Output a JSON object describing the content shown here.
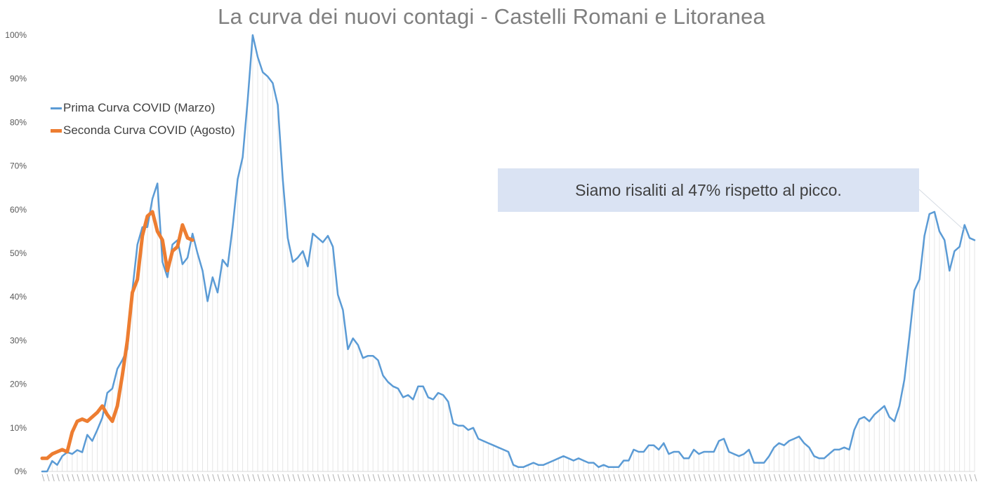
{
  "chart_data": {
    "type": "line",
    "title": "La curva dei nuovi contagi - Castelli Romani e Litoranea",
    "xlabel": "",
    "ylabel": "",
    "ylim": [
      0,
      100
    ],
    "yticks": [
      "0%",
      "10%",
      "20%",
      "30%",
      "40%",
      "50%",
      "60%",
      "70%",
      "80%",
      "90%",
      "100%"
    ],
    "grid": "vertical gridlines at each day",
    "legend_position": "top-left",
    "annotation": "Siamo risaliti al 47% rispetto al picco.",
    "series": [
      {
        "name": "Prima Curva COVID (Marzo)",
        "color": "#5b9bd5",
        "values": [
          0,
          0,
          2.4,
          1.5,
          3.5,
          4.4,
          4.0,
          4.9,
          4.4,
          8.4,
          7.0,
          9.5,
          12.3,
          18,
          19,
          23.5,
          25.5,
          28,
          41.5,
          52,
          56,
          56,
          62.5,
          66,
          48,
          44.5,
          52,
          53,
          47.5,
          49,
          54.5,
          50,
          46,
          39,
          44.5,
          41,
          48.5,
          47,
          56,
          67,
          72,
          85,
          100,
          95,
          91.5,
          90.5,
          89,
          84,
          67,
          53.5,
          48,
          49,
          50.5,
          47,
          54.5,
          53.5,
          52.5,
          54,
          51.5,
          40.5,
          37,
          28,
          30.5,
          29,
          26,
          26.5,
          26.5,
          25.5,
          22,
          20.5,
          19.5,
          19,
          17,
          17.5,
          16.5,
          19.5,
          19.5,
          17,
          16.5,
          18,
          17.5,
          16,
          11,
          10.5,
          10.5,
          9.5,
          10,
          7.5,
          7,
          6.5,
          6,
          5.5,
          5,
          4.5,
          1.5,
          1,
          1,
          1.5,
          2,
          1.5,
          1.5,
          2,
          2.5,
          3,
          3.5,
          3,
          2.5,
          3,
          2.5,
          2,
          2,
          1,
          1.5,
          1,
          1,
          1,
          2.5,
          2.5,
          5,
          4.5,
          4.5,
          6,
          6,
          5,
          6.5,
          4,
          4.5,
          4.5,
          3,
          3,
          5,
          4,
          4.5,
          4.5,
          4.5,
          7,
          7.5,
          4.5,
          4,
          3.5,
          4,
          5,
          2,
          2,
          2,
          3.5,
          5.5,
          6.5,
          6,
          7,
          7.5,
          8,
          6.5,
          5.5,
          3.5,
          3,
          3,
          4,
          5,
          5,
          5.5,
          5,
          9.5,
          12,
          12.5,
          11.5,
          13,
          14,
          15,
          12.5,
          11.5,
          15,
          21,
          31,
          41.5,
          44,
          54,
          59,
          59.5,
          55,
          53,
          46,
          50.5,
          51.5,
          56.5,
          53.5,
          53
        ]
      },
      {
        "name": "Seconda Curva COVID (Agosto)",
        "color": "#ed7d31",
        "values": [
          3,
          3,
          4,
          4.5,
          5,
          4.5,
          9,
          11.5,
          12,
          11.5,
          12.5,
          13.5,
          15,
          13,
          11.5,
          15,
          22,
          30,
          41,
          44,
          54,
          58.5,
          59.5,
          55,
          53,
          46,
          50.5,
          51.5,
          56.5,
          53.5,
          53
        ]
      }
    ]
  }
}
